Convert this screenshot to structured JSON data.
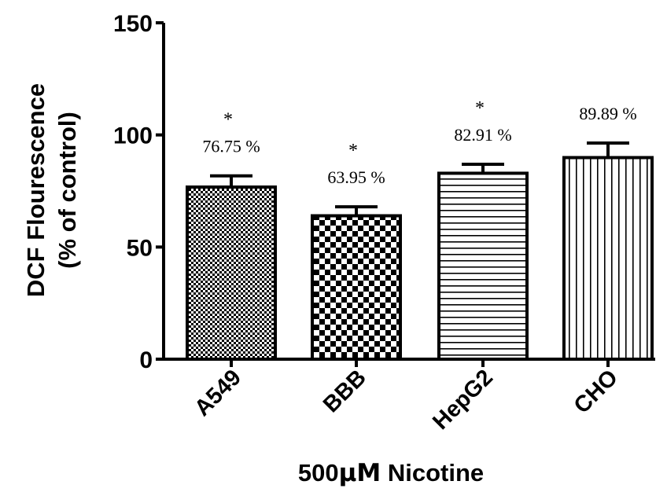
{
  "chart_data": {
    "type": "bar",
    "xlabel_prefix": "500",
    "xlabel_unit": "μM",
    "xlabel_suffix": " Nicotine",
    "ylabel_line1": "DCF Flourescence",
    "ylabel_line2": "(% of control)",
    "ylim": [
      0,
      150
    ],
    "yticks": [
      "0",
      "50",
      "100",
      "150"
    ],
    "ytick_values": [
      0,
      50,
      100,
      150
    ],
    "categories": [
      "A549",
      "BBB",
      "HepG2",
      "CHO"
    ],
    "values": [
      76.75,
      63.95,
      82.91,
      89.89
    ],
    "errors": [
      5,
      4,
      4,
      6.5
    ],
    "value_labels": [
      "76.75 %",
      "63.95 %",
      "82.91 %",
      "89.89 %"
    ],
    "significance": [
      "*",
      "*",
      "*",
      ""
    ],
    "patterns": [
      "fine-checker",
      "coarse-checker",
      "horizontal-lines",
      "vertical-lines"
    ],
    "grid": false,
    "legend": "none"
  }
}
